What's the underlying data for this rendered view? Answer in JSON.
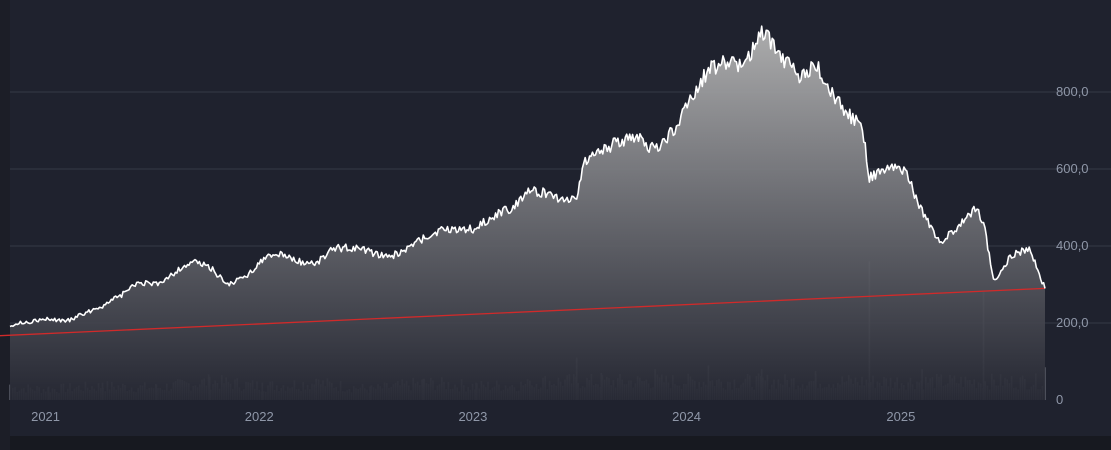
{
  "colors": {
    "background": "#1f222e",
    "page_background": "#1c1e27",
    "bottom_strip": "#171920",
    "grid": "#363a46",
    "axis_text": "#8f97a8",
    "price_line": "#ffffff",
    "area_top": "#b4b4b4",
    "area_bottom": "#262833",
    "volume": "#5a5d67",
    "trendline": "#d12a2a"
  },
  "chart_data": {
    "type": "area",
    "title": "",
    "xlabel": "",
    "ylabel": "",
    "x_range": [
      "2020-12-25",
      "2025-10-28"
    ],
    "ylim": [
      0,
      1000
    ],
    "y_ticks": [
      {
        "value": 800,
        "label": "800,0"
      },
      {
        "value": 600,
        "label": "600,0"
      },
      {
        "value": 400,
        "label": "400,0"
      },
      {
        "value": 200,
        "label": "200,0"
      },
      {
        "value": 0,
        "label": "0"
      }
    ],
    "x_ticks": [
      {
        "date": "2021-01-01",
        "label": "2021"
      },
      {
        "date": "2022-01-01",
        "label": "2022"
      },
      {
        "date": "2023-01-01",
        "label": "2023"
      },
      {
        "date": "2024-01-01",
        "label": "2024"
      },
      {
        "date": "2025-01-01",
        "label": "2025"
      }
    ],
    "grid": true,
    "series": [
      {
        "type": "area",
        "x": [
          "2020-12-25",
          "2021-02-01",
          "2021-03-01",
          "2021-04-01",
          "2021-05-01",
          "2021-06-01",
          "2021-07-01",
          "2021-08-01",
          "2021-09-01",
          "2021-10-01",
          "2021-11-01",
          "2021-12-01",
          "2022-01-01",
          "2022-02-01",
          "2022-03-01",
          "2022-04-01",
          "2022-05-01",
          "2022-06-01",
          "2022-07-01",
          "2022-08-01",
          "2022-09-01",
          "2022-10-01",
          "2022-11-01",
          "2022-12-01",
          "2023-01-01",
          "2023-02-01",
          "2023-03-01",
          "2023-04-01",
          "2023-05-01",
          "2023-06-01",
          "2023-07-01",
          "2023-08-01",
          "2023-08-20",
          "2023-09-01",
          "2023-10-01",
          "2023-11-01",
          "2023-12-01",
          "2024-01-01",
          "2024-02-01",
          "2024-03-01",
          "2024-04-01",
          "2024-05-01",
          "2024-06-01",
          "2024-07-01",
          "2024-08-01",
          "2024-09-01",
          "2024-10-01",
          "2024-11-01",
          "2024-12-01",
          "2024-12-20",
          "2025-01-01",
          "2025-02-01",
          "2025-03-01",
          "2025-04-01",
          "2025-05-01",
          "2025-06-01",
          "2025-07-01",
          "2025-07-15",
          "2025-08-01",
          "2025-09-01",
          "2025-10-01",
          "2025-10-28"
        ],
        "y": [
          195,
          205,
          210,
          205,
          225,
          245,
          270,
          305,
          300,
          330,
          360,
          345,
          300,
          320,
          365,
          380,
          360,
          355,
          395,
          395,
          385,
          370,
          390,
          420,
          440,
          445,
          445,
          480,
          500,
          545,
          535,
          520,
          525,
          620,
          650,
          670,
          680,
          650,
          700,
          775,
          860,
          880,
          870,
          960,
          900,
          840,
          870,
          790,
          735,
          710,
          580,
          600,
          600,
          490,
          410,
          445,
          500,
          460,
          310,
          375,
          395,
          290
        ]
      },
      {
        "type": "bar",
        "name": "",
        "x": [
          "2020-12-25",
          "2021-03-01",
          "2021-06-01",
          "2021-09-01",
          "2021-12-01",
          "2022-03-01",
          "2022-06-01",
          "2022-09-01",
          "2022-12-01",
          "2023-03-01",
          "2023-06-01",
          "2023-08-20",
          "2023-10-01",
          "2024-01-01",
          "2024-04-01",
          "2024-07-01",
          "2024-10-01",
          "2025-01-01",
          "2025-04-01",
          "2025-07-15",
          "2025-10-28"
        ],
        "y": [
          40,
          35,
          45,
          40,
          60,
          45,
          55,
          35,
          55,
          45,
          50,
          110,
          70,
          80,
          90,
          80,
          75,
          360,
          80,
          280,
          85
        ]
      },
      {
        "type": "line",
        "name": "",
        "x": [
          "2020-12-25",
          "2025-10-28"
        ],
        "y": [
          180,
          290
        ]
      }
    ]
  }
}
